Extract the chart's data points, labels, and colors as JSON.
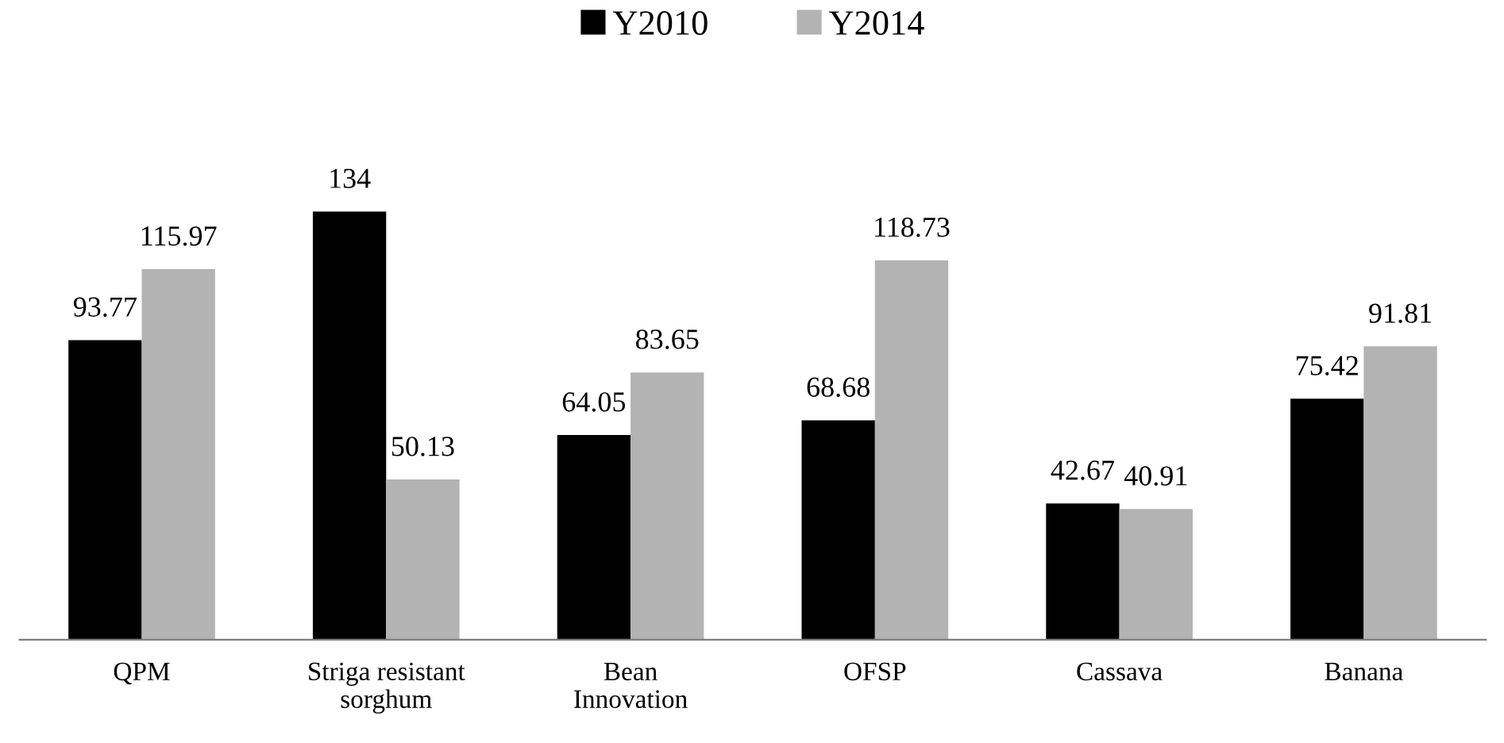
{
  "chart_data": {
    "type": "bar",
    "categories": [
      "QPM",
      "Striga resistant\nsorghum",
      "Bean\nInnovation",
      "OFSP",
      "Cassava",
      "Banana"
    ],
    "series": [
      {
        "name": "Y2010",
        "color": "#000000",
        "values": [
          93.77,
          134,
          64.05,
          68.68,
          42.67,
          75.42
        ]
      },
      {
        "name": "Y2014",
        "color": "#b3b3b3",
        "values": [
          115.97,
          50.13,
          83.65,
          118.73,
          40.91,
          91.81
        ]
      }
    ],
    "data_labels": true,
    "legend": "top",
    "grid": false
  }
}
